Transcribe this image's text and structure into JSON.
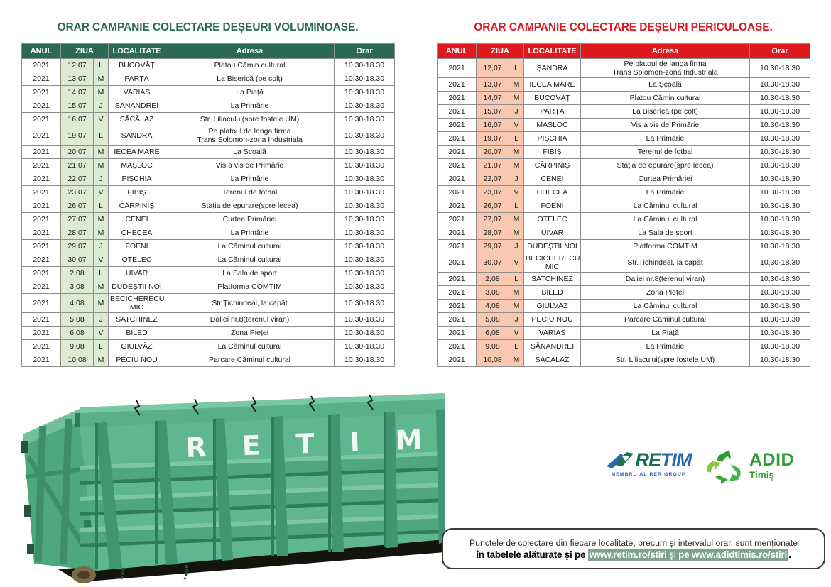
{
  "left_table": {
    "title": "ORAR CAMPANIE COLECTARE DEȘEURI VOLUMINOASE.",
    "accent_color": "#2b6a52",
    "day_cell_color": "#dcebd2",
    "headers": [
      "ANUL",
      "ZIUA",
      "LOCALITATE",
      "Adresa",
      "Orar"
    ],
    "rows": [
      [
        "2021",
        "12,07",
        "L",
        "BUCOVĂȚ",
        "Platou Cămin cultural",
        "10.30-18.30"
      ],
      [
        "2021",
        "13,07",
        "M",
        "PARȚA",
        "La Biserică (pe colț)",
        "10.30-18.30"
      ],
      [
        "2021",
        "14,07",
        "M",
        "VARIAS",
        "La Piață",
        "10.30-18.30"
      ],
      [
        "2021",
        "15,07",
        "J",
        "SÂNANDREI",
        "La Primărie",
        "10.30-18.30"
      ],
      [
        "2021",
        "16,07",
        "V",
        "SĂCĂLAZ",
        "Str. Liliacului(spre fostele UM)",
        "10.30-18.30"
      ],
      [
        "2021",
        "19,07",
        "L",
        "ȘANDRA",
        "Pe platoul de langa firma\nTrans Solomon-zona Industriala",
        "10.30-18.30"
      ],
      [
        "2021",
        "20,07",
        "M",
        "IECEA MARE",
        "La Școală",
        "10.30-18.30"
      ],
      [
        "2021",
        "21,07",
        "M",
        "MAȘLOC",
        "Vis a vis de Primărie",
        "10.30-18.30"
      ],
      [
        "2021",
        "22,07",
        "J",
        "PIȘCHIA",
        "La Primărie",
        "10.30-18.30"
      ],
      [
        "2021",
        "23,07",
        "V",
        "FIBIȘ",
        "Terenul de fotbal",
        "10.30-18.30"
      ],
      [
        "2021",
        "26,07",
        "L",
        "CĂRPINIȘ",
        "Stația de epurare(spre lecea)",
        "10.30-18.30"
      ],
      [
        "2021",
        "27,07",
        "M",
        "CENEI",
        "Curtea Primăriei",
        "10.30-18.30"
      ],
      [
        "2021",
        "28,07",
        "M",
        "CHECEA",
        "La Primărie",
        "10.30-18.30"
      ],
      [
        "2021",
        "29,07",
        "J",
        "FOENI",
        "La Căminul cultural",
        "10.30-18.30"
      ],
      [
        "2021",
        "30,07",
        "V",
        "OTELEC",
        "La Căminul cultural",
        "10.30-18.30"
      ],
      [
        "2021",
        "2,08",
        "L",
        "UIVAR",
        "La Sala de sport",
        "10.30-18.30"
      ],
      [
        "2021",
        "3,08",
        "M",
        "DUDEȘTII NOI",
        "Platforma COMTIM",
        "10.30-18.30"
      ],
      [
        "2021",
        "4,08",
        "M",
        "BECICHERECU MIC",
        "Str.Țichindeal, la capăt",
        "10.30-18.30"
      ],
      [
        "2021",
        "5,08",
        "J",
        "SATCHINEZ",
        "Daliei nr.8(terenul viran)",
        "10.30-18.30"
      ],
      [
        "2021",
        "6,08",
        "V",
        "BILED",
        "Zona Pieței",
        "10.30-18.30"
      ],
      [
        "2021",
        "9,08",
        "L",
        "GIULVĂZ",
        "La Căminul cultural",
        "10.30-18.30"
      ],
      [
        "2021",
        "10,08",
        "M",
        "PECIU NOU",
        "Parcare Căminul cultural",
        "10.30-18.30"
      ]
    ]
  },
  "right_table": {
    "title": "ORAR CAMPANIE COLECTARE DEȘEURI PERICULOASE.",
    "accent_color": "#e0191f",
    "day_cell_color": "#f8c9b0",
    "headers": [
      "ANUL",
      "ZIUA",
      "LOCALITATE",
      "Adresa",
      "Orar"
    ],
    "rows": [
      [
        "2021",
        "12,07",
        "L",
        "ȘANDRA",
        "Pe platoul de langa firma\nTrans Solomon-zona Industriala",
        "10.30-18.30"
      ],
      [
        "2021",
        "13,07",
        "M",
        "IECEA MARE",
        "La Școală",
        "10.30-18.30"
      ],
      [
        "2021",
        "14,07",
        "M",
        "BUCOVĂȚ",
        "Platou Cămin cultural",
        "10.30-18.30"
      ],
      [
        "2021",
        "15,07",
        "J",
        "PARȚA",
        "La Biserică (pe colț)",
        "10.30-18.30"
      ],
      [
        "2021",
        "16,07",
        "V",
        "MASLOC",
        "Vis a vis de Primărie",
        "10.30-18.30"
      ],
      [
        "2021",
        "19,07",
        "L",
        "PIȘCHIA",
        "La Primărie",
        "10.30-18.30"
      ],
      [
        "2021",
        "20,07",
        "M",
        "FIBIȘ",
        "Terenul de fotbal",
        "10.30-18.30"
      ],
      [
        "2021",
        "21,07",
        "M",
        "CĂRPINIȘ",
        "Stația de epurare(spre lecea)",
        "10.30-18.30"
      ],
      [
        "2021",
        "22,07",
        "J",
        "CENEI",
        "Curtea Primăriei",
        "10.30-18.30"
      ],
      [
        "2021",
        "23,07",
        "V",
        "CHECEA",
        "La Primărie",
        "10.30-18.30"
      ],
      [
        "2021",
        "26,07",
        "L",
        "FOENI",
        "La Căminul cultural",
        "10.30-18.30"
      ],
      [
        "2021",
        "27,07",
        "M",
        "OTELEC",
        "La Căminul cultural",
        "10.30-18.30"
      ],
      [
        "2021",
        "28,07",
        "M",
        "UIVAR",
        "La Sala de sport",
        "10.30-18.30"
      ],
      [
        "2021",
        "29,07",
        "J",
        "DUDEȘTII NOI",
        "Platforma COMTIM",
        "10.30-18.30"
      ],
      [
        "2021",
        "30,07",
        "V",
        "BECICHERECU MIC",
        "Str.Țichindeal, la capăt",
        "10.30-18.30"
      ],
      [
        "2021",
        "2,08",
        "L",
        "SATCHINEZ",
        "Daliei nr.8(terenul viran)",
        "10.30-18.30"
      ],
      [
        "2021",
        "3,08",
        "M",
        "BILED",
        "Zona Pieței",
        "10.30-18.30"
      ],
      [
        "2021",
        "4,08",
        "M",
        "GIULVĂZ",
        "La Căminul cultural",
        "10.30-18.30"
      ],
      [
        "2021",
        "5,08",
        "J",
        "PECIU NOU",
        "Parcare Căminul cultural",
        "10.30-18.30"
      ],
      [
        "2021",
        "6,08",
        "V",
        "VARIAS",
        "La Piață",
        "10.30-18.30"
      ],
      [
        "2021",
        "9,08",
        "L",
        "SÂNANDREI",
        "La Primărie",
        "10.30-18.30"
      ],
      [
        "2021",
        "10,08",
        "M",
        "SĂCĂLAZ",
        "Str. Liliacului(spre fostele UM)",
        "10.30-18.30"
      ]
    ]
  },
  "dumpster": {
    "label": "RETIM",
    "body_color": "#5eb78e"
  },
  "logos": {
    "retim": {
      "part1": "RE",
      "part2": "TIM",
      "tagline": "MEMBRU AL RER GROUP",
      "green": "#1c6f4d",
      "blue": "#2769ae"
    },
    "adid": {
      "name": "ADID",
      "region": "Timiş",
      "green": "#2f9e35"
    }
  },
  "footer_note": {
    "line1": "Punctele de colectare din fiecare localitate, precum şi intervalul orar, sunt menţionate",
    "line2_prefix": "în tabelele alăturate şi pe ",
    "url1": "www.retim.ro/stiri",
    "middle": " şi ",
    "pe2": "pe ",
    "url2": "www.adidtimis.ro/stiri",
    "suffix": ".",
    "highlight_color": "#7fa190"
  }
}
